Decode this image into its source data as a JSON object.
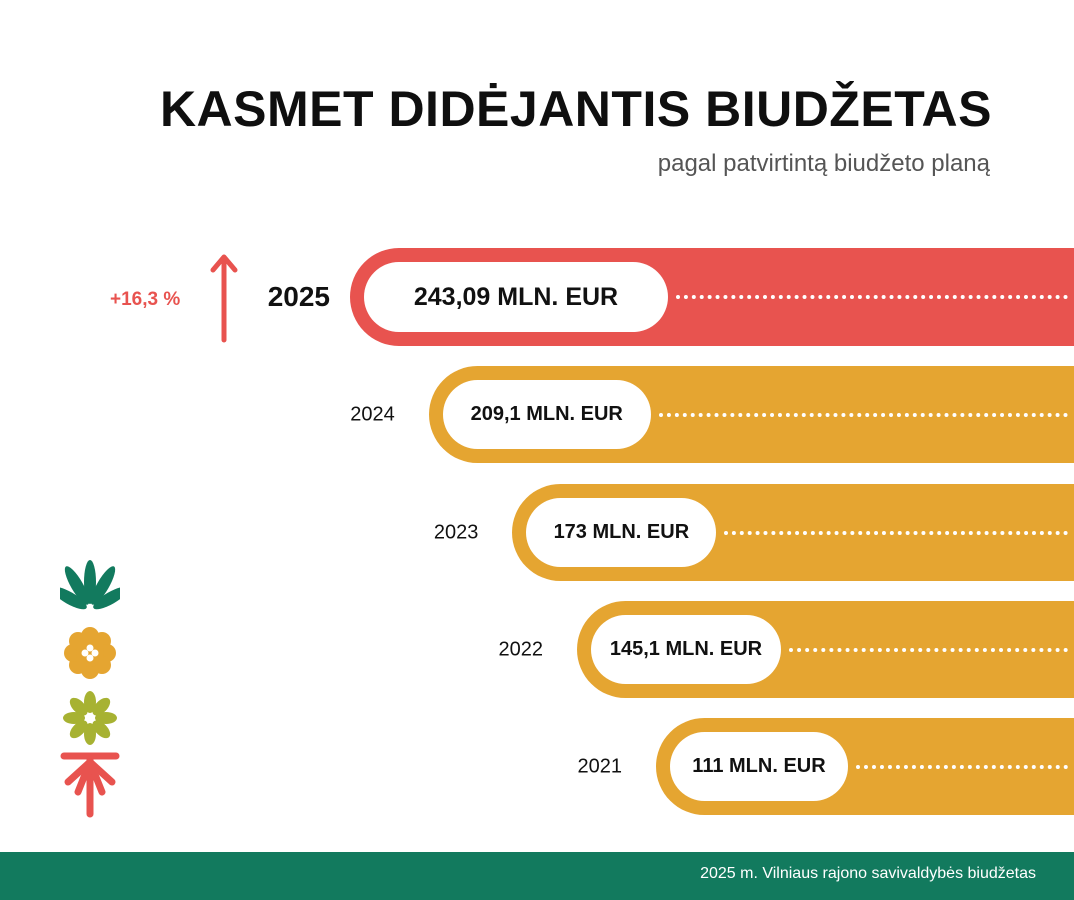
{
  "header": {
    "title": "KASMET DIDĖJANTIS BIUDŽETAS",
    "subtitle": "pagal patvirtintą biudžeto planą"
  },
  "growth": {
    "label": "+16,3 %",
    "color": "#e8534f"
  },
  "colors": {
    "current_bar": "#e8534f",
    "previous_bars": "#e5a531",
    "footer": "#127a5e",
    "deco_leaf": "#127a5e",
    "deco_flower": "#e5a531",
    "deco_star": "#a7b232",
    "deco_arrow": "#e8534f"
  },
  "chart_data": {
    "type": "bar",
    "categories": [
      "2025",
      "2024",
      "2023",
      "2022",
      "2021"
    ],
    "values": [
      243.09,
      209.1,
      173,
      145.1,
      111
    ],
    "value_labels": [
      "243,09 MLN. EUR",
      "209,1 MLN. EUR",
      "173 MLN. EUR",
      "145,1 MLN. EUR",
      "111 MLN. EUR"
    ],
    "title": "KASMET DIDĖJANTIS BIUDŽETAS",
    "subtitle": "pagal patvirtintą biudžeto planą",
    "unit": "MLN. EUR",
    "highlight_category": "2025",
    "orientation": "horizontal",
    "grid": false,
    "legend": "none"
  },
  "footer": {
    "text": "2025 m. Vilniaus rajono savivaldybės biudžetas"
  }
}
